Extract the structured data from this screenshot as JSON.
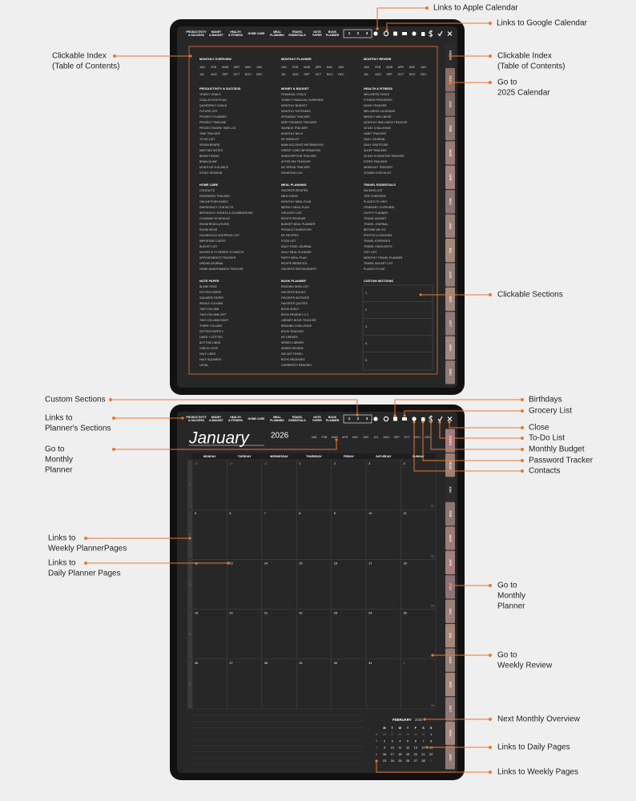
{
  "annotations": [
    {
      "lines": [
        "Links to Apple Calendar"
      ]
    },
    {
      "lines": [
        "Links to Google Calendar"
      ]
    },
    {
      "lines": [
        "Clickable Index",
        "(Table of Contents)"
      ]
    },
    {
      "lines": [
        "Clickable Index",
        "(Table of Contents)"
      ]
    },
    {
      "lines": [
        "Go to",
        "2025 Calendar"
      ]
    },
    {
      "lines": [
        "Clickable Sections"
      ]
    },
    {
      "lines": [
        "Custom Sections"
      ]
    },
    {
      "lines": [
        "Links to",
        "Planner's Sections"
      ]
    },
    {
      "lines": [
        "Go to",
        "Monthly",
        "Planner"
      ]
    },
    {
      "lines": [
        "Links to",
        "Weekly PlannerPages"
      ]
    },
    {
      "lines": [
        "Links to",
        "Daily Planner Pages"
      ]
    },
    {
      "lines": [
        "Birthdays"
      ]
    },
    {
      "lines": [
        "Grocery List"
      ]
    },
    {
      "lines": [
        "Close"
      ]
    },
    {
      "lines": [
        "To-Do List"
      ]
    },
    {
      "lines": [
        "Monthly Budget"
      ]
    },
    {
      "lines": [
        "Password Tracker"
      ]
    },
    {
      "lines": [
        "Contacts"
      ]
    },
    {
      "lines": [
        "Go to",
        "Monthly",
        "Planner"
      ]
    },
    {
      "lines": [
        "Go to",
        "Weekly Review"
      ]
    },
    {
      "lines": [
        "Next Monthly Overview"
      ]
    },
    {
      "lines": [
        "Links to Daily Pages"
      ]
    },
    {
      "lines": [
        "Links to Weekly Pages"
      ]
    }
  ],
  "nav": {
    "sections": [
      [
        "PRODUCTIVITY",
        "& SUCCESS"
      ],
      [
        "MONEY",
        "& BUDGET"
      ],
      [
        "HEALTH",
        "& FITNESS"
      ],
      [
        "HOME CARE"
      ],
      [
        "MEAL",
        "PLANNING"
      ],
      [
        "TRAVEL",
        "ESSENTIALS"
      ],
      [
        "NOTE",
        "PAPER"
      ],
      [
        "BOOK",
        "PLANNER"
      ]
    ],
    "numbers": [
      "1",
      "2",
      "3"
    ]
  },
  "tabs": [
    "INDEX",
    "YEAR"
  ],
  "months": [
    "JAN",
    "FEB",
    "MAR",
    "APR",
    "MAY",
    "JUN",
    "JUL",
    "AUG",
    "SEP",
    "OCT",
    "NOV",
    "DEC"
  ],
  "index": {
    "columns": [
      {
        "header": "MONTHLY OVERVIEW",
        "sections": [
          {
            "title": "PRODUCTIVITY & SUCCESS",
            "items": [
              "YEARLY GOALS",
              "GOAL ACTION PLAN",
              "QUARTERLY GOALS",
              "FUTURE LIFE",
              "PROJECT PLANNER",
              "PROJECT TIMELINE",
              "PROJECT/WORK TIME LOG",
              "TIME TRACKER",
              "TO DO LIST",
              "VISION BOARD",
              "MEETING NOTES",
              "BRIGHT IDEAS",
              "BRAIN DUMP",
              "MONTH AT A GLANCE",
              "STUDY SESSION"
            ]
          },
          {
            "title": "HOME CARE",
            "items": [
              "CONTACTS",
              "PASSWORD TRACKER",
              "ONLINE PURCHASES",
              "EMERGENCY CONTACTS",
              "BIRTHDAYS, EVENTS & CELEBRATIONS",
              "CLEANING SCHEDULE",
              "ROOM RESOLUTIONS",
              "ROOM IDEAS",
              "HOUSEHOLD SHOPPING LIST",
              "IMPORTANT DATES",
              "BUCKET LIST",
              "MOVIES & TV SERIES TO WATCH",
              "APPOINTMENTS TRACKER",
              "DREAM JOURNAL",
              "HOME MAINTENANCE TRACKER"
            ]
          },
          {
            "title": "NOTE PAPER",
            "items": [
              "BLANK PAGE",
              "DOTTED PAPER",
              "SQUARED PAPER",
              "SINGLE COLUMN",
              "TWO COLUMN",
              "TWO COLUMN LEFT",
              "TWO COLUMN RIGHT",
              "THREE COLUMN",
              "DOTTED PAPER 2",
              "LINED + DOTTED",
              "BOTTOM LINED",
              "CHECK LISTS",
              "HALF LINES",
              "HALF SQUARES",
              "LEGAL"
            ]
          }
        ]
      },
      {
        "header": "MONTHLY PLANNER",
        "sections": [
          {
            "title": "MONEY & BUDGET",
            "items": [
              "FINANCIAL GOALS",
              "YEARLY FINANCIAL OVERVIEW",
              "MONTHLY BUDGET",
              "MONTHLY EXPENSES",
              "SPENDING TRACKER",
              "DEBT PAYMENT TRACKER",
              "SAVINGS TRACKER",
              "MONTHLY BILLS",
              "MY WISHLIST",
              "BANK ACCOUNT INFORMATION",
              "CREDIT CARD INFORMATION",
              "SUBSCRIPTION TRACKER",
              "AFTER PAY TRACKER",
              "NO SPEND TRACKER",
              "DONATION LOG"
            ]
          },
          {
            "title": "MEAL PLANNING",
            "items": [
              "FAVORITE RECIPES",
              "MEAL IDEAS",
              "MONTHLY MEAL PLAN",
              "WEEKLY MEAL PLAN",
              "GROCERY LIST",
              "RECIPE REVIEWS",
              "BUDGET MEAL PLANNER",
              "PRODUCT INVENTORY",
              "MY RECIPES",
              "FOOD LIST",
              "DAILY FOOD JOURNAL",
              "DAILY MEAL PLANNER",
              "PARTY MEAL PLAN",
              "RECIPE WEBSITES",
              "FAVORITE RESTAURANTS"
            ]
          },
          {
            "title": "BOOK PLANNER",
            "items": [
              "READING WISH LIST",
              "FAVORITE BOOKS",
              "FAVORITE AUTHORS",
              "FAVORITE QUOTES",
              "BOOK SHELF",
              "BOOK REVIEW  1  2  3",
              "LIBRARY BOOK TRACKER",
              "READING CHALLENGE",
              "BOOK TRACKER",
              "MY LIBRARY",
              "SERIES LIBRARY",
              "SERIES REVIEW",
              "DID NOT FINISH",
              "BOOK RELEASES",
              "CURRENTLY READING"
            ]
          }
        ]
      },
      {
        "header": "MONTHLY REVIEW",
        "sections": [
          {
            "title": "HEALTH & FITNESS",
            "items": [
              "WELLNESS GOALS",
              "FITNESS PROGRESS",
              "MOOD TRACKER",
              "WELLNESS CALENDAR",
              "WEEKLY WELLNESS",
              "MONTHLY WELLNESS TRACKER",
              "30 DAY CHALLENGE",
              "HABIT TRACKER",
              "DAILY JOURNAL",
              "DAILY GRATITUDE",
              "SLEEP TRACKER",
              "30 DAY HYDRATION TRACKER",
              "STEPS TRACKER",
              "WORKOUT TRACKER",
              "VITAMIN CHECKLIST"
            ]
          },
          {
            "title": "TRAVEL ESSENTIALS",
            "items": [
              "PACKING LIST",
              "TRIP OVERVIEW",
              "PLACES TO VISIT",
              "ITINERARY OVERVIEW",
              "OUTFIT PLANNER",
              "TRAVEL BUDGET",
              "TRAVEL JOURNAL",
              "BEFORE WE GO",
              "PHOTOS & GOODIES",
              "TRAVEL EXPENSES",
              "TRAVEL HIGHLIGHTS",
              "GIFT LIST",
              "MONTHLY TRAVEL PLANNER",
              "TRAVEL BUCKET LIST",
              "PLACES TO EAT"
            ]
          }
        ]
      }
    ],
    "custom_sections": {
      "title": "CUSTOM SECTIONS",
      "slots": [
        "1.",
        "2.",
        "3.",
        "4.",
        "5."
      ]
    }
  },
  "calendar": {
    "month": "January",
    "year": "2026",
    "weekdays": [
      "MONDAY",
      "TUESDAY",
      "WEDNESDAY",
      "THURSDAY",
      "FRIDAY",
      "SATURDAY",
      "SUNDAY"
    ],
    "weeks": [
      {
        "side": "1",
        "label": "01",
        "days": [
          29,
          30,
          31,
          1,
          2,
          3,
          4
        ]
      },
      {
        "side": "2",
        "label": "02",
        "days": [
          5,
          6,
          7,
          8,
          9,
          10,
          11
        ]
      },
      {
        "side": "3",
        "label": "03",
        "days": [
          12,
          13,
          14,
          15,
          16,
          17,
          18
        ]
      },
      {
        "side": "4",
        "label": "04",
        "days": [
          19,
          20,
          21,
          22,
          23,
          24,
          25
        ]
      },
      {
        "side": "5",
        "label": "05",
        "days": [
          26,
          27,
          28,
          29,
          30,
          31,
          1
        ]
      }
    ],
    "mini": {
      "month": "FEBRUARY",
      "year": "2026",
      "weekdays": [
        "M",
        "T",
        "W",
        "T",
        "F",
        "S",
        "S"
      ],
      "rows": [
        {
          "week": "5",
          "days": [
            26,
            27,
            28,
            29,
            30,
            31,
            1
          ]
        },
        {
          "week": "6",
          "days": [
            2,
            3,
            4,
            5,
            6,
            7,
            8
          ]
        },
        {
          "week": "7",
          "days": [
            9,
            10,
            11,
            12,
            13,
            14,
            15
          ]
        },
        {
          "week": "8",
          "days": [
            16,
            17,
            18,
            19,
            20,
            21,
            22
          ]
        },
        {
          "week": "9",
          "days": [
            23,
            24,
            25,
            26,
            27,
            28,
            1
          ]
        }
      ]
    }
  }
}
